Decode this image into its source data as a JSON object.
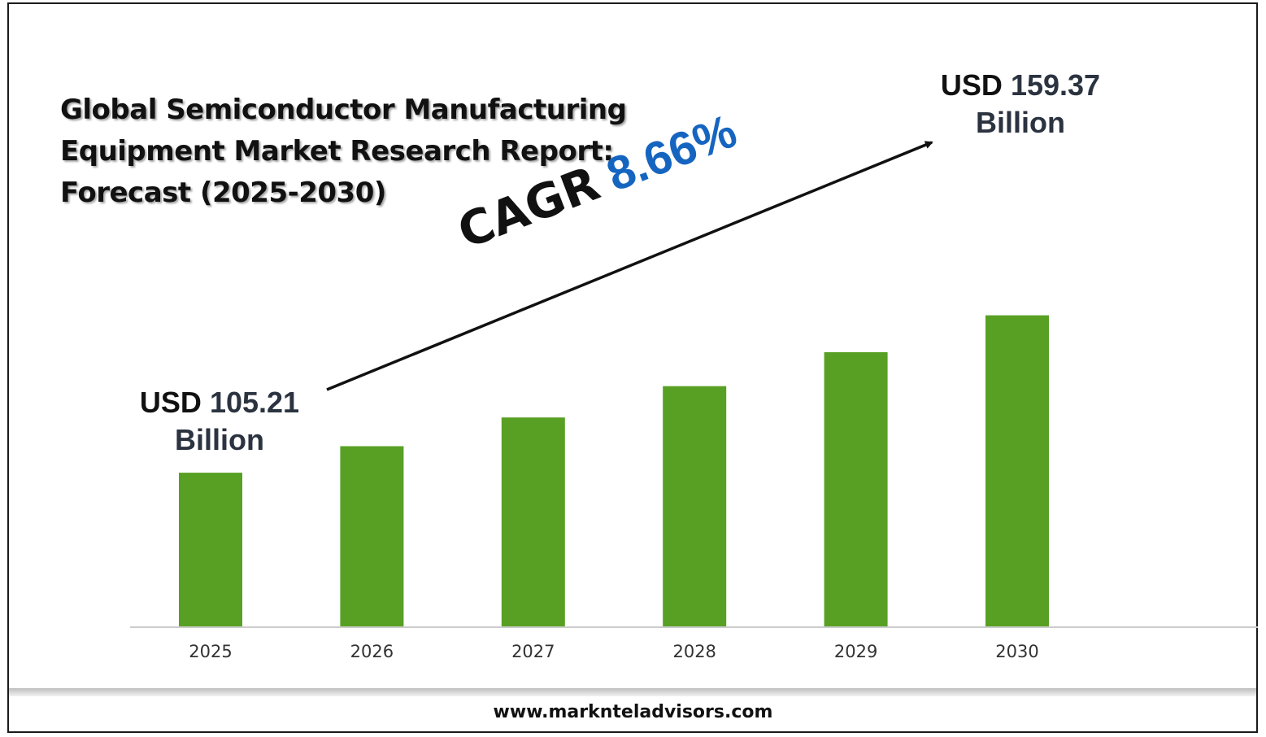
{
  "title_lines": [
    "Global Semiconductor Manufacturing",
    "Equipment Market Research Report:",
    "Forecast (2025-2030)"
  ],
  "start_callout": {
    "prefix": "USD",
    "value": "105.21",
    "unit": "Billion"
  },
  "end_callout": {
    "prefix": "USD",
    "value": "159.37",
    "unit": "Billion"
  },
  "cagr": {
    "label": "CAGR",
    "value": "8.66%"
  },
  "footer": {
    "website": "www.marknteladvisors.com"
  },
  "colors": {
    "bar": "#58a023",
    "cagr_value": "#1565c0",
    "axis": "#cccccc",
    "arrow": "#111111"
  },
  "chart_data": {
    "type": "bar",
    "categories": [
      "2025",
      "2026",
      "2027",
      "2028",
      "2029",
      "2030"
    ],
    "values": [
      105.21,
      114.32,
      124.22,
      134.98,
      146.67,
      159.37
    ],
    "title": "Global Semiconductor Manufacturing Equipment Market Research Report: Forecast (2025-2030)",
    "xlabel": "",
    "ylabel": "",
    "grid": false,
    "legend": "none",
    "unit": "USD Billion"
  }
}
